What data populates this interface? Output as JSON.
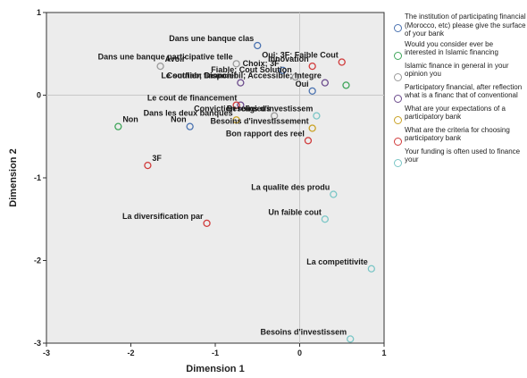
{
  "chart_data": {
    "type": "scatter",
    "title": "",
    "xlabel": "Dimension 1",
    "ylabel": "Dimension 2",
    "xlim": [
      -3,
      1
    ],
    "ylim": [
      -3,
      1
    ],
    "xticks": [
      "-3",
      "-2",
      "-1",
      "0",
      "1"
    ],
    "yticks": [
      "1",
      "0",
      "-1",
      "-2",
      "-3"
    ],
    "grid": false,
    "legend_position": "right",
    "series": [
      {
        "name": "The institution of participating financial (Morocco, etc) please give the surface of your bank",
        "color": "#4a72b0",
        "points": [
          {
            "x": -0.5,
            "y": 0.6,
            "label": "Dans une banque clas"
          },
          {
            "x": -0.2,
            "y": 0.3,
            "label": "Choix; 3F"
          },
          {
            "x": 0.15,
            "y": 0.05,
            "label": "Oui"
          },
          {
            "x": -1.3,
            "y": -0.38,
            "label": "Non"
          }
        ]
      },
      {
        "name": "Would you consider ever be interested in Islamic financing",
        "color": "#3fa55a",
        "points": [
          {
            "x": -2.15,
            "y": -0.38,
            "label": "Non"
          },
          {
            "x": 0.55,
            "y": 0.12,
            "label": ""
          }
        ]
      },
      {
        "name": "Islamic finance in general in your opinion you",
        "color": "#9a9a9a",
        "points": [
          {
            "x": -1.65,
            "y": 0.35,
            "label": "Avoir"
          },
          {
            "x": -0.3,
            "y": -0.25,
            "label": "Conviction religieus"
          },
          {
            "x": -0.05,
            "y": 0.22,
            "label": "Fiable; Cout Solution"
          },
          {
            "x": -0.75,
            "y": 0.38,
            "label": "Dans une banque participative telle"
          }
        ]
      },
      {
        "name": "Participatory financial, after reflection what is a financ that of conventional",
        "color": "#6b4a8c",
        "points": [
          {
            "x": 0.3,
            "y": 0.15,
            "label": "Coutfiab; Disponibil; Accessible; Integre"
          },
          {
            "x": -0.7,
            "y": -0.12,
            "label": "Le cout de financement"
          },
          {
            "x": -0.7,
            "y": 0.15,
            "label": "Le soutien financier"
          }
        ]
      },
      {
        "name": "What are your expectations of a participatory bank",
        "color": "#c9a225",
        "points": [
          {
            "x": -0.75,
            "y": -0.3,
            "label": "Dans les deux banques"
          },
          {
            "x": 0.15,
            "y": -0.4,
            "label": "Besoins d'investissement"
          }
        ]
      },
      {
        "name": "What are the criteria for choosing participatory bank",
        "color": "#d03a3a",
        "points": [
          {
            "x": 0.5,
            "y": 0.4,
            "label": "Oui; 3F; Faible Cout"
          },
          {
            "x": -1.8,
            "y": -0.85,
            "label": "3F"
          },
          {
            "x": -1.1,
            "y": -1.55,
            "label": "La diversification par"
          },
          {
            "x": 0.15,
            "y": 0.35,
            "label": "Innovation"
          },
          {
            "x": 0.1,
            "y": -0.55,
            "label": "Bon rapport des reel"
          },
          {
            "x": -0.75,
            "y": -0.12,
            "label": ""
          }
        ]
      },
      {
        "name": "Your funding is often used to finance your",
        "color": "#7ac6c6",
        "points": [
          {
            "x": 0.4,
            "y": -1.2,
            "label": "La qualite des produ"
          },
          {
            "x": 0.85,
            "y": -2.1,
            "label": "La competitivite"
          },
          {
            "x": 0.6,
            "y": -2.95,
            "label": "Besoins d'investissem"
          },
          {
            "x": 0.2,
            "y": -0.25,
            "label": "Besoins d'investissem"
          },
          {
            "x": 0.3,
            "y": -1.5,
            "label": "Un faible cout"
          }
        ]
      }
    ]
  },
  "legend": {
    "entries": [
      {
        "text": "The institution of participating financial (Morocco, etc) please give the surface of your bank",
        "color": "#4a72b0"
      },
      {
        "text": "Would you consider ever be interested in Islamic financing",
        "color": "#3fa55a"
      },
      {
        "text": "Islamic finance in general in your opinion you",
        "color": "#9a9a9a"
      },
      {
        "text": "Participatory financial, after reflection what is a financ that of conventional",
        "color": "#6b4a8c"
      },
      {
        "text": "What are your expectations of a participatory bank",
        "color": "#c9a225"
      },
      {
        "text": "What are the criteria for choosing participatory bank",
        "color": "#d03a3a"
      },
      {
        "text": "Your funding is often used to finance your",
        "color": "#7ac6c6"
      }
    ]
  }
}
